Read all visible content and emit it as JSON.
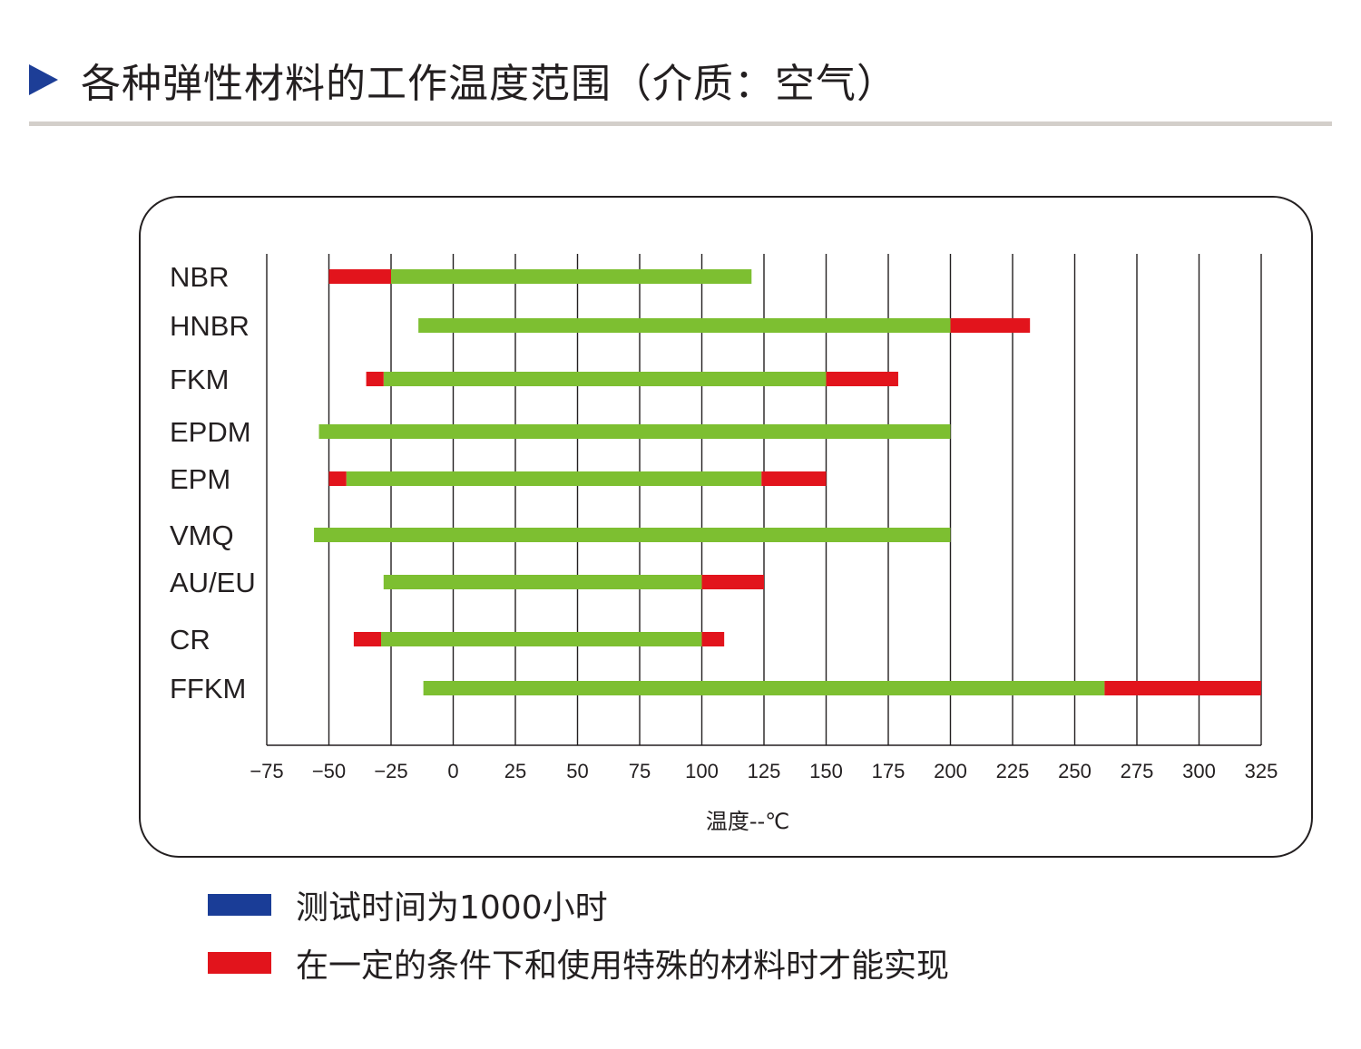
{
  "header": {
    "title": "各种弹性材料的工作温度范围（介质：空气）"
  },
  "chart_data": {
    "type": "bar",
    "orientation": "horizontal-range",
    "xlabel": "温度--℃",
    "xlim": [
      -75,
      325
    ],
    "xticks": [
      "−75",
      "−50",
      "−25",
      "0",
      "25",
      "50",
      "75",
      "100",
      "125",
      "150",
      "175",
      "200",
      "225",
      "250",
      "275",
      "300",
      "325"
    ],
    "xtick_values": [
      -75,
      -50,
      -25,
      0,
      25,
      50,
      75,
      100,
      125,
      150,
      175,
      200,
      225,
      250,
      275,
      300,
      325
    ],
    "grid": "vertical",
    "categories": [
      "NBR",
      "HNBR",
      "FKM",
      "EPDM",
      "EPM",
      "VMQ",
      "AU/EU",
      "CR",
      "FFKM"
    ],
    "series": [
      {
        "color": "#7dbf31",
        "ranges": [
          [
            -25,
            120
          ],
          [
            -14,
            200
          ],
          [
            -28,
            150
          ],
          [
            -54,
            200
          ],
          [
            -43,
            124
          ],
          [
            -56,
            200
          ],
          [
            -28,
            100
          ],
          [
            -29,
            100
          ],
          [
            -12,
            262
          ]
        ]
      },
      {
        "color": "#e2141c",
        "ranges": [
          [
            -50,
            -25
          ],
          null,
          [
            -35,
            -28
          ],
          null,
          [
            -50,
            -43
          ],
          null,
          null,
          [
            -40,
            -29
          ],
          null
        ]
      },
      {
        "color": "#e2141c",
        "ranges": [
          null,
          [
            200,
            232
          ],
          [
            150,
            179
          ],
          null,
          [
            124,
            150
          ],
          null,
          [
            100,
            125
          ],
          [
            100,
            109
          ],
          [
            262,
            325
          ]
        ]
      }
    ]
  },
  "legend": {
    "items": [
      {
        "color": "#1a3d97",
        "label": "测试时间为1000小时"
      },
      {
        "color": "#e2141c",
        "label": "在一定的条件下和使用特殊的材料时才能实现"
      }
    ]
  }
}
